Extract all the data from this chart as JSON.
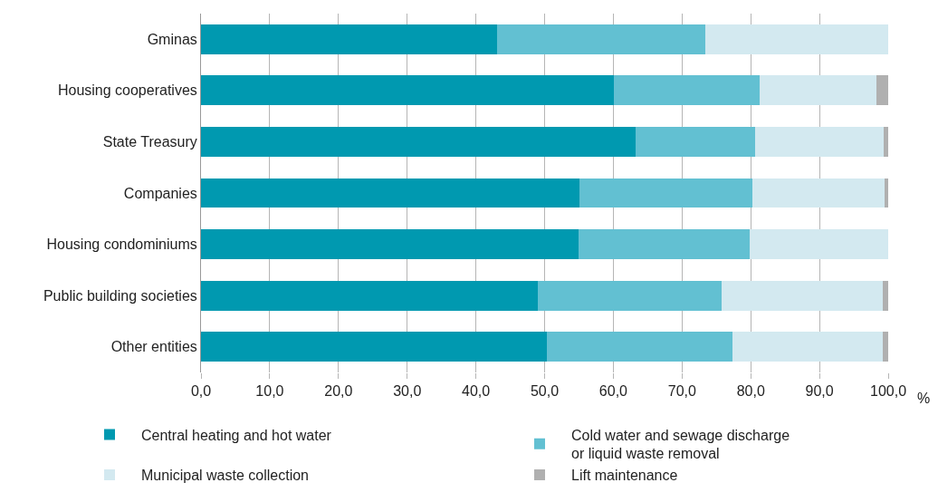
{
  "chart_data": {
    "type": "bar",
    "orientation": "horizontal",
    "stacked": true,
    "xlabel": "%",
    "categories": [
      "Gminas",
      "Housing cooperatives",
      "State Treasury",
      "Companies",
      "Housing condominiums",
      "Public building societies",
      "Other entities"
    ],
    "series": [
      {
        "name": "Central heating and hot water",
        "color": "#0099b0",
        "values": [
          43.1,
          60.1,
          63.2,
          55.1,
          54.9,
          49.0,
          50.3
        ]
      },
      {
        "name": "Cold water and sewage discharge\nor liquid waste removal",
        "color": "#62c0d2",
        "values": [
          30.3,
          21.2,
          17.4,
          25.1,
          25.0,
          26.7,
          27.0
        ]
      },
      {
        "name": "Municipal waste collection",
        "color": "#d3e9f0",
        "values": [
          26.6,
          17.0,
          18.7,
          19.3,
          20.1,
          23.5,
          21.9
        ]
      },
      {
        "name": "Lift maintenance",
        "color": "#b0b0b0",
        "values": [
          0,
          1.7,
          0.7,
          0.5,
          0,
          0.8,
          0.8
        ]
      }
    ],
    "xlim": [
      0,
      100
    ],
    "xticks": [
      {
        "value": 0,
        "label": "0,0"
      },
      {
        "value": 10,
        "label": "10,0"
      },
      {
        "value": 20,
        "label": "20,0"
      },
      {
        "value": 30,
        "label": "30,0"
      },
      {
        "value": 40,
        "label": "40,0"
      },
      {
        "value": 50,
        "label": "50,0"
      },
      {
        "value": 60,
        "label": "60,0"
      },
      {
        "value": 70,
        "label": "70,0"
      },
      {
        "value": 80,
        "label": "80,0"
      },
      {
        "value": 90,
        "label": "90,0"
      },
      {
        "value": 100,
        "label": "100,0"
      }
    ],
    "grid": "x",
    "legend": "bottom"
  }
}
